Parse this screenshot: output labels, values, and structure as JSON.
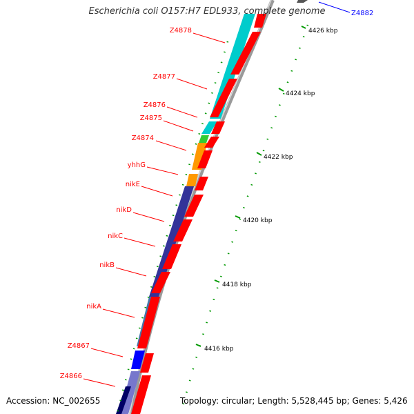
{
  "title": "Escherichia coli O157:H7 EDL933, complete genome",
  "accession": "Accession: NC_002655",
  "summary": "Topology: circular; Length: 5,528,445 bp; Genes: 5,426",
  "colors": {
    "gene_label": "#ff0000",
    "highlight_label": "#0000ff",
    "forward_strand": "#ff0000",
    "backbone": "#808080",
    "tick": "#008800",
    "segments": [
      "#00cccc",
      "#33cc33",
      "#ff9900",
      "#333399",
      "#4477aa",
      "#0000ff"
    ]
  },
  "highlight_gene": "Z4882",
  "gene_labels": [
    "Z4878",
    "Z4877",
    "Z4876",
    "Z4875",
    "Z4874",
    "yhhG",
    "nikE",
    "nikD",
    "nikC",
    "nikB",
    "nikA",
    "Z4867",
    "Z4866"
  ],
  "kbp_ticks": [
    "4426 kbp",
    "4424 kbp",
    "4422 kbp",
    "4420 kbp",
    "4418 kbp",
    "4416 kbp"
  ]
}
